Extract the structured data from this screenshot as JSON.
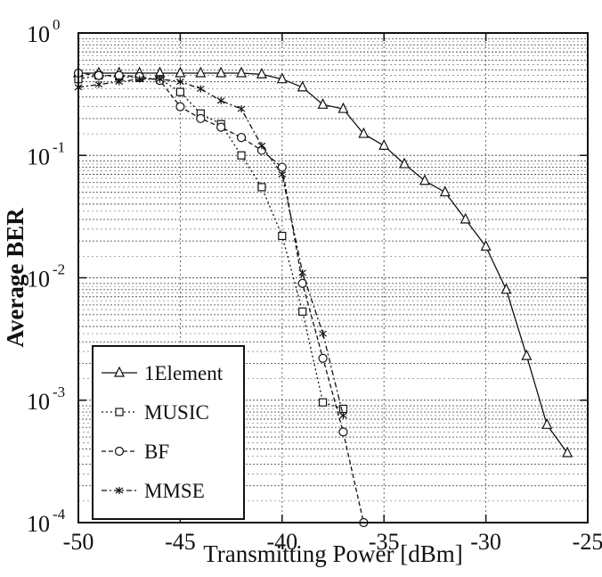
{
  "chart_data": {
    "type": "line",
    "xlabel": "Transmitting Power [dBm]",
    "ylabel": "Average BER",
    "xlim": [
      -50,
      -25
    ],
    "ylim": [
      0.0001,
      1
    ],
    "yscale": "log",
    "grid": true,
    "legend_position": "bottom-left",
    "x_ticks": [
      {
        "value": -50,
        "label": "-50"
      },
      {
        "value": -45,
        "label": "-45"
      },
      {
        "value": -40,
        "label": "-40"
      },
      {
        "value": -35,
        "label": "-35"
      },
      {
        "value": -30,
        "label": "-30"
      },
      {
        "value": -25,
        "label": "-25"
      }
    ],
    "y_ticks": [
      {
        "value": 1,
        "base": "10",
        "exp": "0"
      },
      {
        "value": 0.1,
        "base": "10",
        "exp": "-1"
      },
      {
        "value": 0.01,
        "base": "10",
        "exp": "-2"
      },
      {
        "value": 0.001,
        "base": "10",
        "exp": "-3"
      },
      {
        "value": 0.0001,
        "base": "10",
        "exp": "-4"
      }
    ],
    "series": [
      {
        "name": "1Element",
        "marker": "triangle",
        "dash": "none",
        "x": [
          -50,
          -49,
          -48,
          -47,
          -46,
          -45,
          -44,
          -43,
          -42,
          -41,
          -40,
          -39,
          -38,
          -37,
          -36,
          -35,
          -34,
          -33,
          -32,
          -31,
          -30,
          -29,
          -28,
          -27,
          -26
        ],
        "y": [
          0.47,
          0.47,
          0.47,
          0.47,
          0.47,
          0.47,
          0.47,
          0.47,
          0.47,
          0.46,
          0.42,
          0.36,
          0.26,
          0.24,
          0.15,
          0.12,
          0.085,
          0.062,
          0.05,
          0.03,
          0.018,
          0.008,
          0.0023,
          0.00063,
          0.00037
        ]
      },
      {
        "name": "MUSIC",
        "marker": "square",
        "dash": "dotted",
        "x": [
          -50,
          -49,
          -48,
          -47,
          -46,
          -45,
          -44,
          -43,
          -42,
          -41,
          -40,
          -39,
          -38,
          -37
        ],
        "y": [
          0.42,
          0.45,
          0.44,
          0.43,
          0.42,
          0.33,
          0.22,
          0.18,
          0.1,
          0.055,
          0.022,
          0.0053,
          0.00096,
          0.00085
        ]
      },
      {
        "name": "BF",
        "marker": "circle",
        "dash": "dashed",
        "x": [
          -50,
          -49,
          -48,
          -47,
          -46,
          -45,
          -44,
          -43,
          -42,
          -41,
          -40,
          -39,
          -38,
          -37,
          -36
        ],
        "y": [
          0.47,
          0.45,
          0.45,
          0.44,
          0.41,
          0.25,
          0.2,
          0.17,
          0.14,
          0.11,
          0.08,
          0.009,
          0.0022,
          0.00055,
          0.0001
        ]
      },
      {
        "name": "MMSE",
        "marker": "star",
        "dash": "dashdot",
        "x": [
          -50,
          -49,
          -48,
          -47,
          -46,
          -45,
          -44,
          -43,
          -42,
          -41,
          -40,
          -39,
          -38,
          -37
        ],
        "y": [
          0.36,
          0.38,
          0.4,
          0.42,
          0.42,
          0.4,
          0.35,
          0.28,
          0.24,
          0.12,
          0.07,
          0.011,
          0.0035,
          0.00075
        ]
      }
    ]
  }
}
